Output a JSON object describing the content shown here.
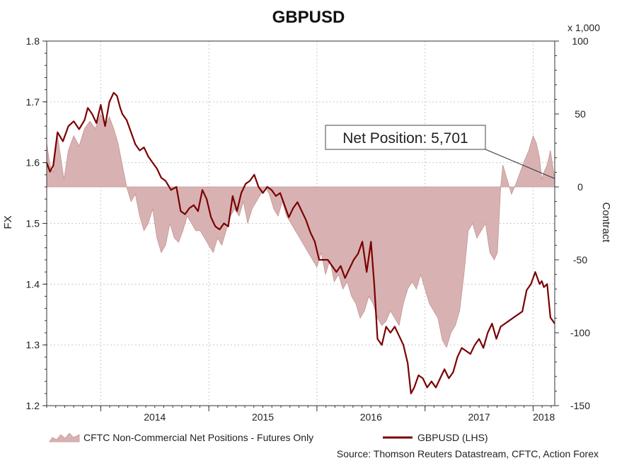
{
  "chart_data": {
    "type": "line",
    "title": "GBPUSD",
    "ylabel": "FX",
    "y2label": "Contract",
    "y2_multiplier_label": "x 1,000",
    "ylim": [
      1.2,
      1.8
    ],
    "y2lim": [
      -150,
      100
    ],
    "y_ticks": [
      "1.2",
      "1.3",
      "1.4",
      "1.5",
      "1.6",
      "1.7",
      "1.8"
    ],
    "y2_ticks": [
      "-150",
      "-100",
      "-50",
      "0",
      "50",
      "100"
    ],
    "x_tick_labels": [
      "2014",
      "2015",
      "2016",
      "2017",
      "2018"
    ],
    "x_range": [
      2013.5,
      2018.2
    ],
    "source": "Source: Thomson Reuters Datastream, CFTC, Action Forex",
    "annotation": {
      "label": "Net Position: 5,701",
      "x": 2018.2,
      "y2": 5.701
    },
    "colors": {
      "line": "#7a0000",
      "area_fill": "#d8b2b2",
      "area_stroke": "#c49393",
      "callout_line": "#333333"
    },
    "series": [
      {
        "name": "GBPUSD (LHS)",
        "type": "line",
        "axis": "left",
        "points": [
          [
            2013.5,
            1.6
          ],
          [
            2013.53,
            1.585
          ],
          [
            2013.56,
            1.595
          ],
          [
            2013.6,
            1.65
          ],
          [
            2013.65,
            1.635
          ],
          [
            2013.7,
            1.66
          ],
          [
            2013.75,
            1.668
          ],
          [
            2013.8,
            1.655
          ],
          [
            2013.85,
            1.67
          ],
          [
            2013.88,
            1.69
          ],
          [
            2013.92,
            1.68
          ],
          [
            2013.96,
            1.665
          ],
          [
            2014.0,
            1.695
          ],
          [
            2014.04,
            1.66
          ],
          [
            2014.08,
            1.7
          ],
          [
            2014.12,
            1.715
          ],
          [
            2014.15,
            1.71
          ],
          [
            2014.18,
            1.69
          ],
          [
            2014.2,
            1.68
          ],
          [
            2014.24,
            1.67
          ],
          [
            2014.28,
            1.65
          ],
          [
            2014.32,
            1.63
          ],
          [
            2014.36,
            1.62
          ],
          [
            2014.4,
            1.625
          ],
          [
            2014.44,
            1.61
          ],
          [
            2014.48,
            1.6
          ],
          [
            2014.52,
            1.59
          ],
          [
            2014.56,
            1.575
          ],
          [
            2014.6,
            1.57
          ],
          [
            2014.65,
            1.555
          ],
          [
            2014.7,
            1.56
          ],
          [
            2014.74,
            1.52
          ],
          [
            2014.78,
            1.515
          ],
          [
            2014.82,
            1.525
          ],
          [
            2014.86,
            1.53
          ],
          [
            2014.9,
            1.52
          ],
          [
            2014.94,
            1.555
          ],
          [
            2014.98,
            1.54
          ],
          [
            2015.02,
            1.51
          ],
          [
            2015.06,
            1.495
          ],
          [
            2015.1,
            1.49
          ],
          [
            2015.14,
            1.5
          ],
          [
            2015.18,
            1.495
          ],
          [
            2015.22,
            1.545
          ],
          [
            2015.26,
            1.52
          ],
          [
            2015.3,
            1.55
          ],
          [
            2015.34,
            1.565
          ],
          [
            2015.38,
            1.57
          ],
          [
            2015.42,
            1.58
          ],
          [
            2015.46,
            1.56
          ],
          [
            2015.5,
            1.55
          ],
          [
            2015.54,
            1.56
          ],
          [
            2015.58,
            1.555
          ],
          [
            2015.62,
            1.545
          ],
          [
            2015.66,
            1.55
          ],
          [
            2015.7,
            1.53
          ],
          [
            2015.74,
            1.51
          ],
          [
            2015.78,
            1.525
          ],
          [
            2015.82,
            1.535
          ],
          [
            2015.86,
            1.52
          ],
          [
            2015.9,
            1.505
          ],
          [
            2015.94,
            1.485
          ],
          [
            2015.98,
            1.47
          ],
          [
            2016.02,
            1.44
          ],
          [
            2016.06,
            1.44
          ],
          [
            2016.1,
            1.44
          ],
          [
            2016.14,
            1.43
          ],
          [
            2016.18,
            1.42
          ],
          [
            2016.22,
            1.43
          ],
          [
            2016.26,
            1.41
          ],
          [
            2016.3,
            1.425
          ],
          [
            2016.34,
            1.44
          ],
          [
            2016.38,
            1.45
          ],
          [
            2016.42,
            1.47
          ],
          [
            2016.46,
            1.42
          ],
          [
            2016.5,
            1.47
          ],
          [
            2016.53,
            1.4
          ],
          [
            2016.56,
            1.31
          ],
          [
            2016.6,
            1.3
          ],
          [
            2016.64,
            1.33
          ],
          [
            2016.68,
            1.32
          ],
          [
            2016.72,
            1.33
          ],
          [
            2016.76,
            1.315
          ],
          [
            2016.8,
            1.3
          ],
          [
            2016.84,
            1.27
          ],
          [
            2016.87,
            1.22
          ],
          [
            2016.9,
            1.23
          ],
          [
            2016.94,
            1.25
          ],
          [
            2016.98,
            1.245
          ],
          [
            2017.02,
            1.23
          ],
          [
            2017.06,
            1.24
          ],
          [
            2017.1,
            1.23
          ],
          [
            2017.14,
            1.245
          ],
          [
            2017.18,
            1.26
          ],
          [
            2017.22,
            1.245
          ],
          [
            2017.26,
            1.255
          ],
          [
            2017.3,
            1.28
          ],
          [
            2017.34,
            1.295
          ],
          [
            2017.38,
            1.29
          ],
          [
            2017.42,
            1.285
          ],
          [
            2017.46,
            1.3
          ],
          [
            2017.5,
            1.31
          ],
          [
            2017.54,
            1.295
          ],
          [
            2017.58,
            1.32
          ],
          [
            2017.62,
            1.335
          ],
          [
            2017.66,
            1.31
          ],
          [
            2017.7,
            1.33
          ],
          [
            2017.74,
            1.335
          ],
          [
            2017.78,
            1.34
          ],
          [
            2017.82,
            1.345
          ],
          [
            2017.86,
            1.35
          ],
          [
            2017.9,
            1.355
          ],
          [
            2017.94,
            1.39
          ],
          [
            2017.98,
            1.4
          ],
          [
            2018.02,
            1.42
          ],
          [
            2018.06,
            1.4
          ],
          [
            2018.08,
            1.405
          ],
          [
            2018.1,
            1.395
          ],
          [
            2018.13,
            1.4
          ],
          [
            2018.16,
            1.345
          ],
          [
            2018.2,
            1.335
          ]
        ]
      },
      {
        "name": "CFTC Non-Commercial Net Positions - Futures Only",
        "type": "area",
        "axis": "right",
        "points": [
          [
            2013.5,
            30
          ],
          [
            2013.53,
            15
          ],
          [
            2013.56,
            10
          ],
          [
            2013.6,
            35
          ],
          [
            2013.63,
            20
          ],
          [
            2013.66,
            5
          ],
          [
            2013.7,
            25
          ],
          [
            2013.75,
            35
          ],
          [
            2013.8,
            28
          ],
          [
            2013.85,
            40
          ],
          [
            2013.9,
            45
          ],
          [
            2013.95,
            40
          ],
          [
            2014.0,
            50
          ],
          [
            2014.04,
            42
          ],
          [
            2014.08,
            48
          ],
          [
            2014.12,
            40
          ],
          [
            2014.16,
            30
          ],
          [
            2014.2,
            15
          ],
          [
            2014.24,
            0
          ],
          [
            2014.28,
            -10
          ],
          [
            2014.32,
            -5
          ],
          [
            2014.36,
            -20
          ],
          [
            2014.4,
            -30
          ],
          [
            2014.44,
            -25
          ],
          [
            2014.48,
            -15
          ],
          [
            2014.52,
            -35
          ],
          [
            2014.56,
            -45
          ],
          [
            2014.6,
            -40
          ],
          [
            2014.64,
            -25
          ],
          [
            2014.68,
            -35
          ],
          [
            2014.72,
            -38
          ],
          [
            2014.76,
            -30
          ],
          [
            2014.8,
            -20
          ],
          [
            2014.84,
            -25
          ],
          [
            2014.88,
            -30
          ],
          [
            2014.92,
            -30
          ],
          [
            2014.96,
            -35
          ],
          [
            2015.0,
            -40
          ],
          [
            2015.04,
            -45
          ],
          [
            2015.08,
            -35
          ],
          [
            2015.12,
            -40
          ],
          [
            2015.16,
            -30
          ],
          [
            2015.2,
            -20
          ],
          [
            2015.24,
            -15
          ],
          [
            2015.28,
            -20
          ],
          [
            2015.32,
            -10
          ],
          [
            2015.36,
            -25
          ],
          [
            2015.4,
            -15
          ],
          [
            2015.44,
            -10
          ],
          [
            2015.48,
            -5
          ],
          [
            2015.52,
            0
          ],
          [
            2015.56,
            -5
          ],
          [
            2015.6,
            -15
          ],
          [
            2015.64,
            -20
          ],
          [
            2015.68,
            -10
          ],
          [
            2015.72,
            -20
          ],
          [
            2015.76,
            -25
          ],
          [
            2015.8,
            -30
          ],
          [
            2015.84,
            -35
          ],
          [
            2015.88,
            -40
          ],
          [
            2015.92,
            -45
          ],
          [
            2015.96,
            -50
          ],
          [
            2016.0,
            -55
          ],
          [
            2016.04,
            -45
          ],
          [
            2016.08,
            -60
          ],
          [
            2016.12,
            -50
          ],
          [
            2016.16,
            -65
          ],
          [
            2016.2,
            -60
          ],
          [
            2016.24,
            -70
          ],
          [
            2016.28,
            -65
          ],
          [
            2016.32,
            -75
          ],
          [
            2016.36,
            -80
          ],
          [
            2016.4,
            -90
          ],
          [
            2016.44,
            -85
          ],
          [
            2016.48,
            -75
          ],
          [
            2016.52,
            -80
          ],
          [
            2016.56,
            -90
          ],
          [
            2016.6,
            -95
          ],
          [
            2016.64,
            -92
          ],
          [
            2016.68,
            -85
          ],
          [
            2016.72,
            -90
          ],
          [
            2016.76,
            -95
          ],
          [
            2016.8,
            -80
          ],
          [
            2016.84,
            -70
          ],
          [
            2016.88,
            -65
          ],
          [
            2016.92,
            -70
          ],
          [
            2016.96,
            -60
          ],
          [
            2017.0,
            -70
          ],
          [
            2017.04,
            -80
          ],
          [
            2017.08,
            -85
          ],
          [
            2017.12,
            -90
          ],
          [
            2017.16,
            -105
          ],
          [
            2017.2,
            -110
          ],
          [
            2017.24,
            -100
          ],
          [
            2017.28,
            -95
          ],
          [
            2017.32,
            -85
          ],
          [
            2017.36,
            -60
          ],
          [
            2017.4,
            -30
          ],
          [
            2017.44,
            -25
          ],
          [
            2017.48,
            -35
          ],
          [
            2017.52,
            -30
          ],
          [
            2017.56,
            -25
          ],
          [
            2017.6,
            -45
          ],
          [
            2017.64,
            -50
          ],
          [
            2017.67,
            -45
          ],
          [
            2017.7,
            0
          ],
          [
            2017.72,
            15
          ],
          [
            2017.76,
            5
          ],
          [
            2017.8,
            -5
          ],
          [
            2017.84,
            2
          ],
          [
            2017.88,
            10
          ],
          [
            2017.92,
            18
          ],
          [
            2017.96,
            25
          ],
          [
            2018.0,
            35
          ],
          [
            2018.03,
            30
          ],
          [
            2018.06,
            20
          ],
          [
            2018.08,
            5
          ],
          [
            2018.1,
            10
          ],
          [
            2018.13,
            15
          ],
          [
            2018.16,
            25
          ],
          [
            2018.18,
            15
          ],
          [
            2018.2,
            5.701
          ]
        ]
      }
    ]
  },
  "legend": {
    "area_label": "CFTC Non-Commercial Net Positions - Futures Only",
    "line_label": "GBPUSD (LHS)"
  }
}
